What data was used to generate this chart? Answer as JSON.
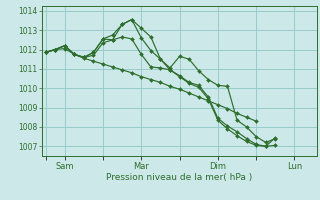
{
  "background_color": "#cce8e8",
  "grid_color": "#99cccc",
  "line_color": "#2d6e2d",
  "marker_color": "#2d6e2d",
  "xlabel": "Pression niveau de la mer( hPa )",
  "ylim": [
    1006.5,
    1014.25
  ],
  "yticks": [
    1007,
    1008,
    1009,
    1010,
    1011,
    1012,
    1013,
    1014
  ],
  "xtick_labels": [
    "",
    "Sam",
    "",
    "Mar",
    "",
    "Dim",
    "",
    "Lun"
  ],
  "xtick_positions": [
    0,
    24,
    72,
    120,
    168,
    216,
    264,
    312
  ],
  "xlim": [
    -5,
    340
  ],
  "series": [
    [
      1011.85,
      1012.0,
      1012.05,
      1011.75,
      1011.55,
      1011.4,
      1011.25,
      1011.1,
      1010.95,
      1010.8,
      1010.6,
      1010.45,
      1010.3,
      1010.1,
      1009.95,
      1009.75,
      1009.55,
      1009.35,
      1009.15,
      1008.95,
      1008.7,
      1008.5,
      1008.3
    ],
    [
      1011.85,
      1012.0,
      1012.2,
      1011.75,
      1011.6,
      1011.85,
      1012.55,
      1012.75,
      1013.3,
      1013.55,
      1013.1,
      1012.65,
      1011.5,
      1011.05,
      1011.65,
      1011.5,
      1010.9,
      1010.45,
      1010.15,
      1010.1,
      1008.35,
      1008.0,
      1007.5,
      1007.2,
      1007.4
    ],
    [
      1011.85,
      1012.0,
      1012.2,
      1011.75,
      1011.6,
      1011.7,
      1012.35,
      1012.5,
      1012.65,
      1012.55,
      1011.75,
      1011.1,
      1011.05,
      1010.95,
      1010.65,
      1010.3,
      1010.15,
      1009.55,
      1008.45,
      1008.05,
      1007.75,
      1007.4,
      1007.1,
      1007.0,
      1007.05
    ],
    [
      1011.85,
      1012.0,
      1012.2,
      1011.75,
      1011.6,
      1011.85,
      1012.55,
      1012.5,
      1013.3,
      1013.55,
      1012.6,
      1011.95,
      1011.5,
      1010.95,
      1010.6,
      1010.25,
      1010.05,
      1009.45,
      1008.35,
      1007.9,
      1007.55,
      1007.25,
      1007.05,
      1007.0,
      1007.45
    ]
  ],
  "series_x": [
    [
      0,
      12,
      24,
      36,
      48,
      60,
      72,
      84,
      96,
      108,
      120,
      132,
      144,
      156,
      168,
      180,
      192,
      204,
      216,
      228,
      240,
      252,
      264
    ],
    [
      0,
      12,
      24,
      36,
      48,
      60,
      72,
      84,
      96,
      108,
      120,
      132,
      144,
      156,
      168,
      180,
      192,
      204,
      216,
      228,
      240,
      252,
      264,
      276,
      288
    ],
    [
      0,
      12,
      24,
      36,
      48,
      60,
      72,
      84,
      96,
      108,
      120,
      132,
      144,
      156,
      168,
      180,
      192,
      204,
      216,
      228,
      240,
      252,
      264,
      276,
      288
    ],
    [
      0,
      12,
      24,
      36,
      48,
      60,
      72,
      84,
      96,
      108,
      120,
      132,
      144,
      156,
      168,
      180,
      192,
      204,
      216,
      228,
      240,
      252,
      264,
      276,
      288
    ]
  ]
}
